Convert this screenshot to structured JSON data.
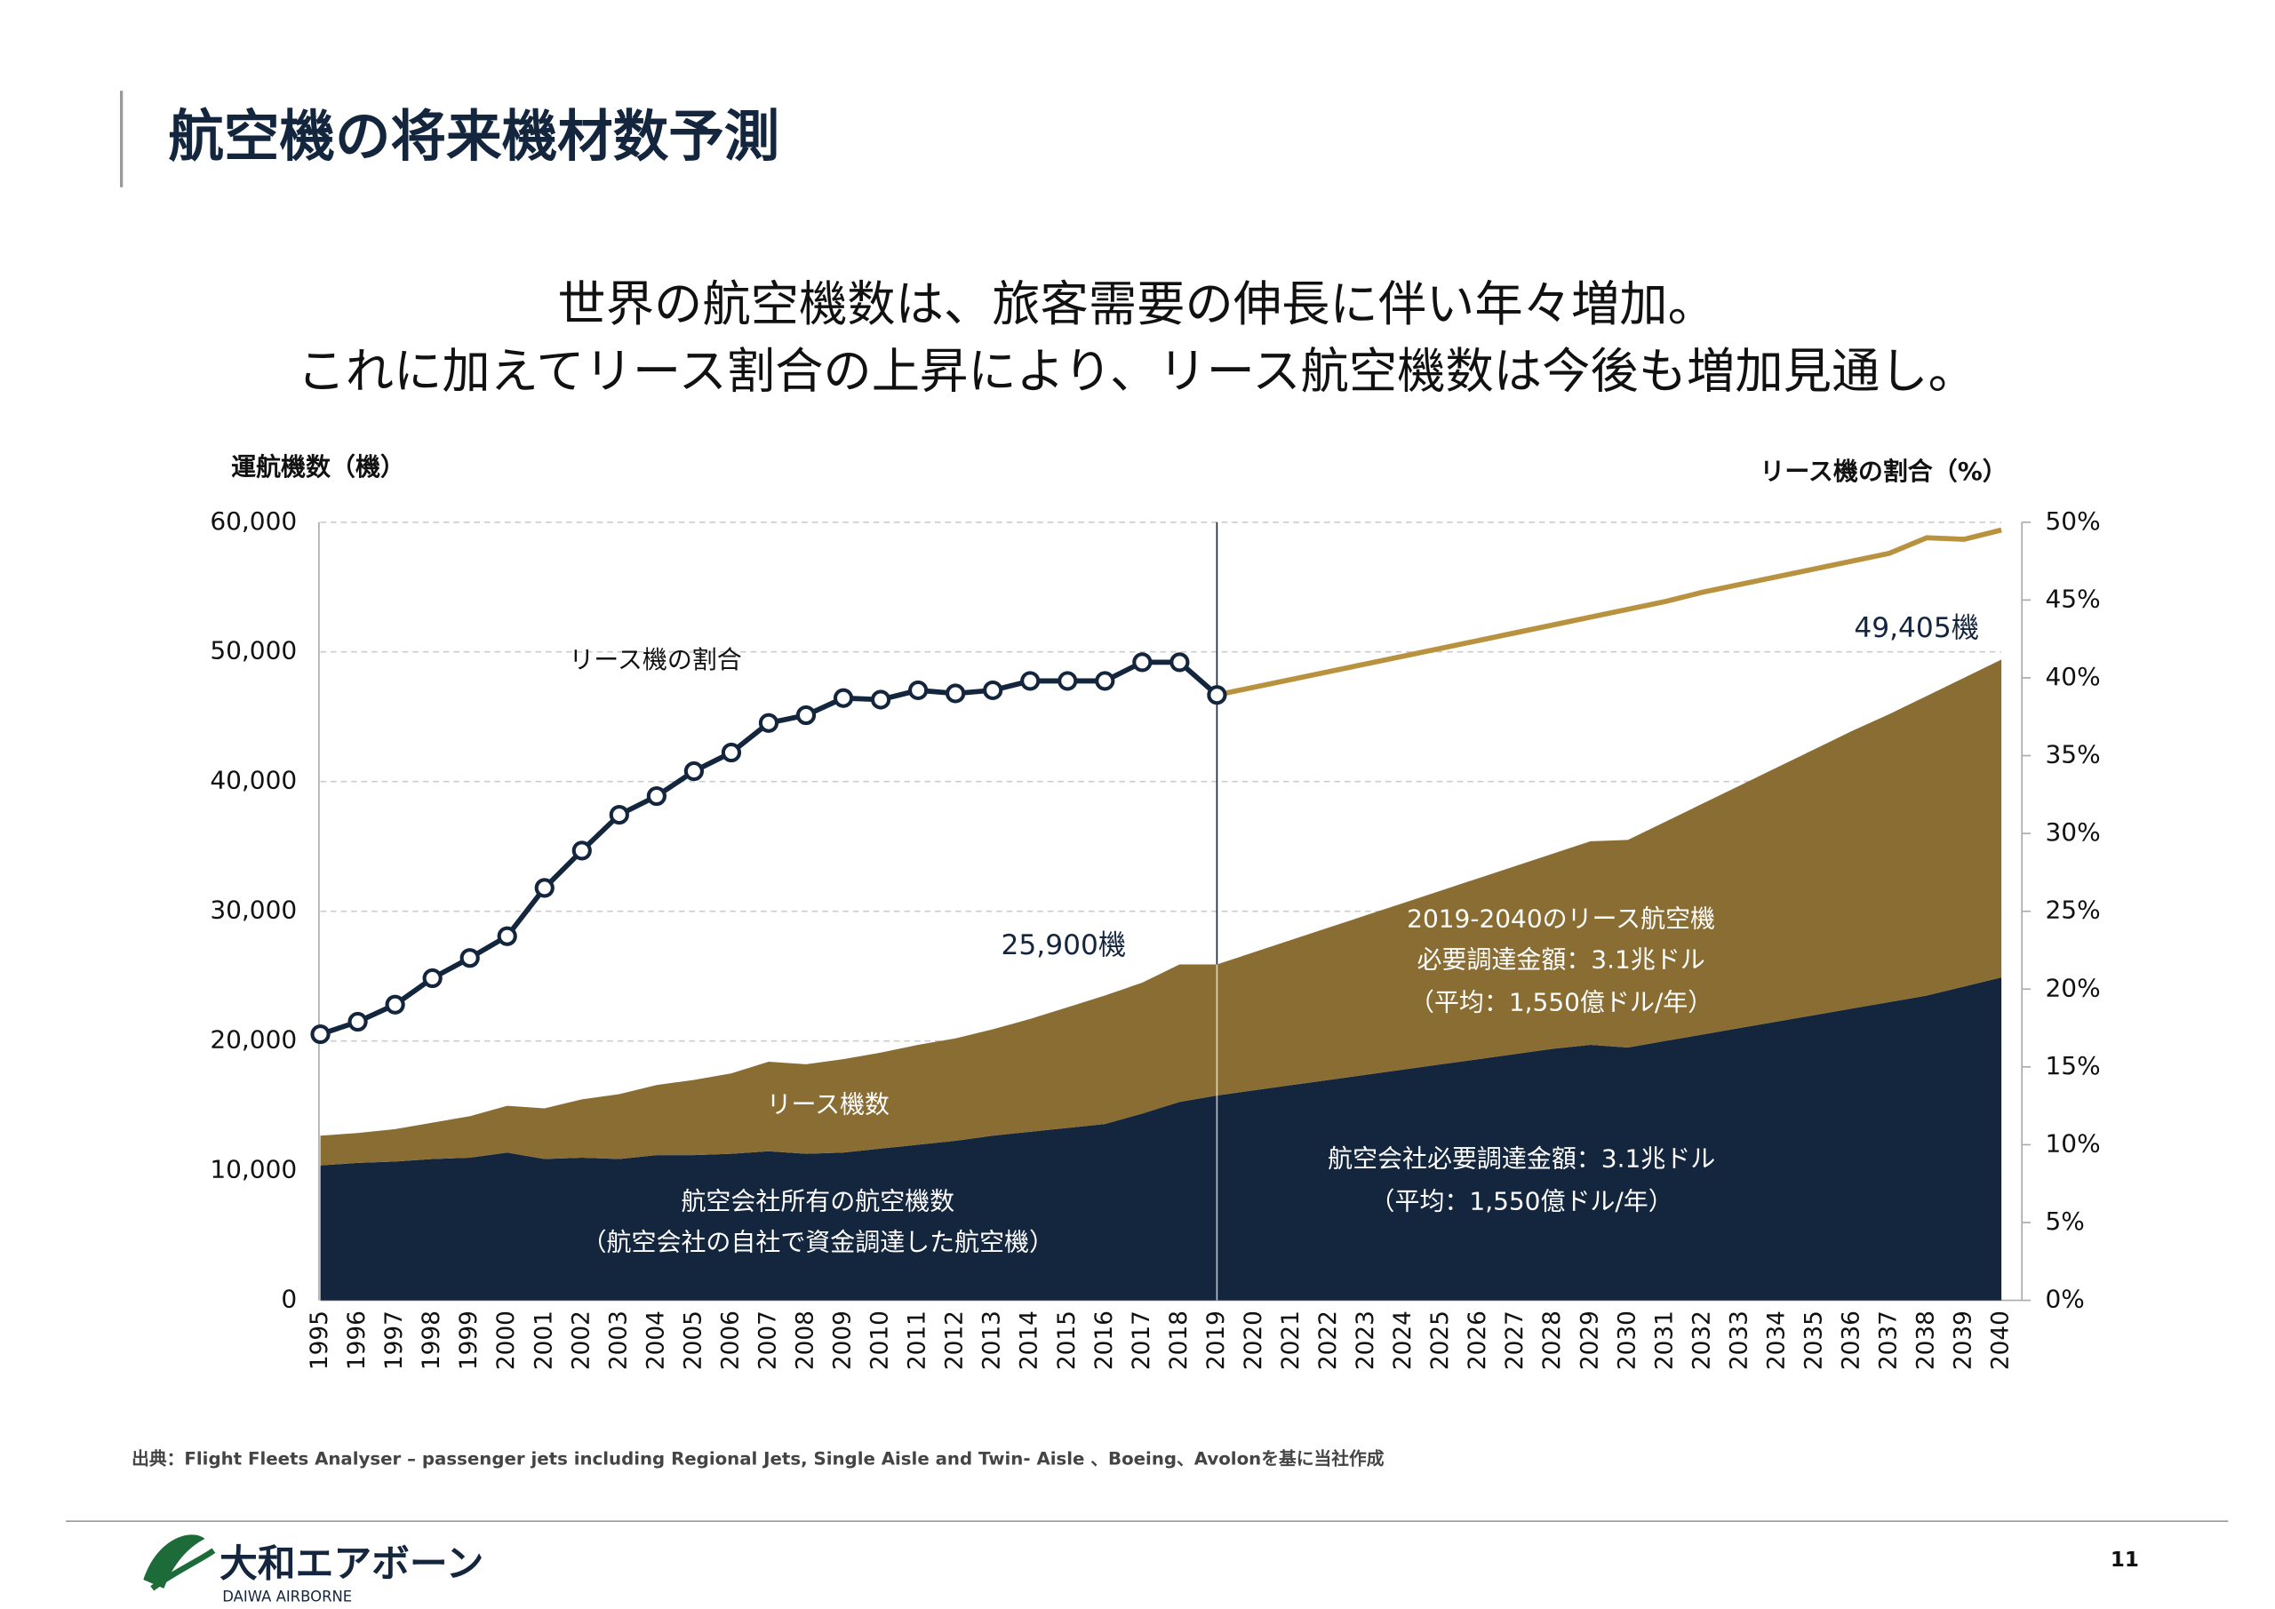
{
  "header": {
    "title": "航空機の将来機材数予測",
    "headline": [
      "世界の航空機数は、旅客需要の伸長に伴い年々増加。",
      "これに加えてリース割合の上昇により、リース航空機数は今後も増加見通し。"
    ]
  },
  "chart_data": {
    "type": "stacked-area-line",
    "ylabel": "運航機数（機）",
    "y2label": "リース機の割合（%）",
    "categories": [
      "1995",
      "1996",
      "1997",
      "1998",
      "1999",
      "2000",
      "2001",
      "2002",
      "2003",
      "2004",
      "2005",
      "2006",
      "2007",
      "2008",
      "2009",
      "2010",
      "2011",
      "2012",
      "2013",
      "2014",
      "2015",
      "2016",
      "2017",
      "2018",
      "2019",
      "2020",
      "2021",
      "2022",
      "2023",
      "2024",
      "2025",
      "2026",
      "2027",
      "2028",
      "2029",
      "2030",
      "2031",
      "2032",
      "2033",
      "2034",
      "2035",
      "2036",
      "2037",
      "2038",
      "2039",
      "2040"
    ],
    "divider": "2019",
    "series": [
      {
        "name": "航空会社所有の航空機数",
        "color": "#14263e",
        "values": [
          10400,
          10600,
          10700,
          10900,
          11000,
          11400,
          10900,
          11000,
          10900,
          11200,
          11200,
          11300,
          11500,
          11300,
          11400,
          11700,
          12000,
          12300,
          12700,
          13000,
          13300,
          13600,
          14400,
          15300,
          15800,
          16200,
          16600,
          17000,
          17400,
          17800,
          18200,
          18600,
          19000,
          19400,
          19700,
          19500,
          20000,
          20500,
          21000,
          21500,
          22000,
          22500,
          23000,
          23500,
          24200,
          24900
        ]
      },
      {
        "name": "リース機数",
        "color": "#8a6d33",
        "values": [
          2300,
          2300,
          2500,
          2800,
          3200,
          3600,
          3900,
          4500,
          5000,
          5400,
          5800,
          6200,
          6900,
          6900,
          7200,
          7400,
          7700,
          7900,
          8200,
          8700,
          9300,
          9900,
          10100,
          10600,
          10100,
          10650,
          11200,
          11750,
          12300,
          12850,
          13400,
          13950,
          14500,
          15050,
          15700,
          16000,
          16900,
          17800,
          18700,
          19600,
          20500,
          21400,
          22200,
          23100,
          23800,
          24505
        ]
      },
      {
        "name": "リース機の割合",
        "color": "#14263e",
        "forecast_color": "#b8923e",
        "axis": "y2",
        "values": [
          17.1,
          17.9,
          19.0,
          20.7,
          22.0,
          23.4,
          26.5,
          28.9,
          31.2,
          32.4,
          34.0,
          35.2,
          37.1,
          37.6,
          38.7,
          38.6,
          39.2,
          39.0,
          39.2,
          39.8,
          39.8,
          39.8,
          41.0,
          41.0,
          38.9,
          39.4,
          39.9,
          40.4,
          40.9,
          41.4,
          41.9,
          42.4,
          42.9,
          43.4,
          43.9,
          44.4,
          44.9,
          45.5,
          46.0,
          46.5,
          47.0,
          47.5,
          48.0,
          49.0,
          48.9,
          49.5
        ]
      }
    ],
    "ylim": [
      0,
      60000
    ],
    "yticks": [
      0,
      {
        "value": 10000,
        "label": "10,000"
      },
      {
        "value": 20000,
        "label": "20,000"
      },
      {
        "value": 30000,
        "label": "30,000"
      },
      {
        "value": 40000,
        "label": "40,000"
      },
      {
        "value": 50000,
        "label": "50,000"
      },
      {
        "value": 60000,
        "label": "60,000"
      }
    ],
    "y2lim": [
      0,
      50
    ],
    "y2ticks": [
      {
        "value": 0,
        "label": "0%"
      },
      {
        "value": 5,
        "label": "5%"
      },
      {
        "value": 10,
        "label": "10%"
      },
      {
        "value": 15,
        "label": "15%"
      },
      {
        "value": 20,
        "label": "20%"
      },
      {
        "value": 25,
        "label": "25%"
      },
      {
        "value": 30,
        "label": "30%"
      },
      {
        "value": 35,
        "label": "35%"
      },
      {
        "value": 40,
        "label": "40%"
      },
      {
        "value": 45,
        "label": "45%"
      },
      {
        "value": 50,
        "label": "50%"
      }
    ],
    "grid": true,
    "annotations": [
      "25,900機",
      "49,405機",
      "2019-2040のリース航空機",
      "必要調達金額：3.1兆ドル",
      "（平均：1,550億ドル/年）",
      "航空会社必要調達金額：3.1兆ドル",
      "（平均：1,550億ドル/年）",
      "（航空会社の自社で資金調達した航空機）"
    ]
  },
  "footer": {
    "source": "出典：Flight Fleets Analyser – passenger jets including Regional Jets, Single Aisle and Twin- Aisle 、Boeing、Avolonを基に当社作成",
    "logo": "大和エアボーン",
    "logo_sub": "DAIWA AIRBORNE",
    "page": "11"
  }
}
